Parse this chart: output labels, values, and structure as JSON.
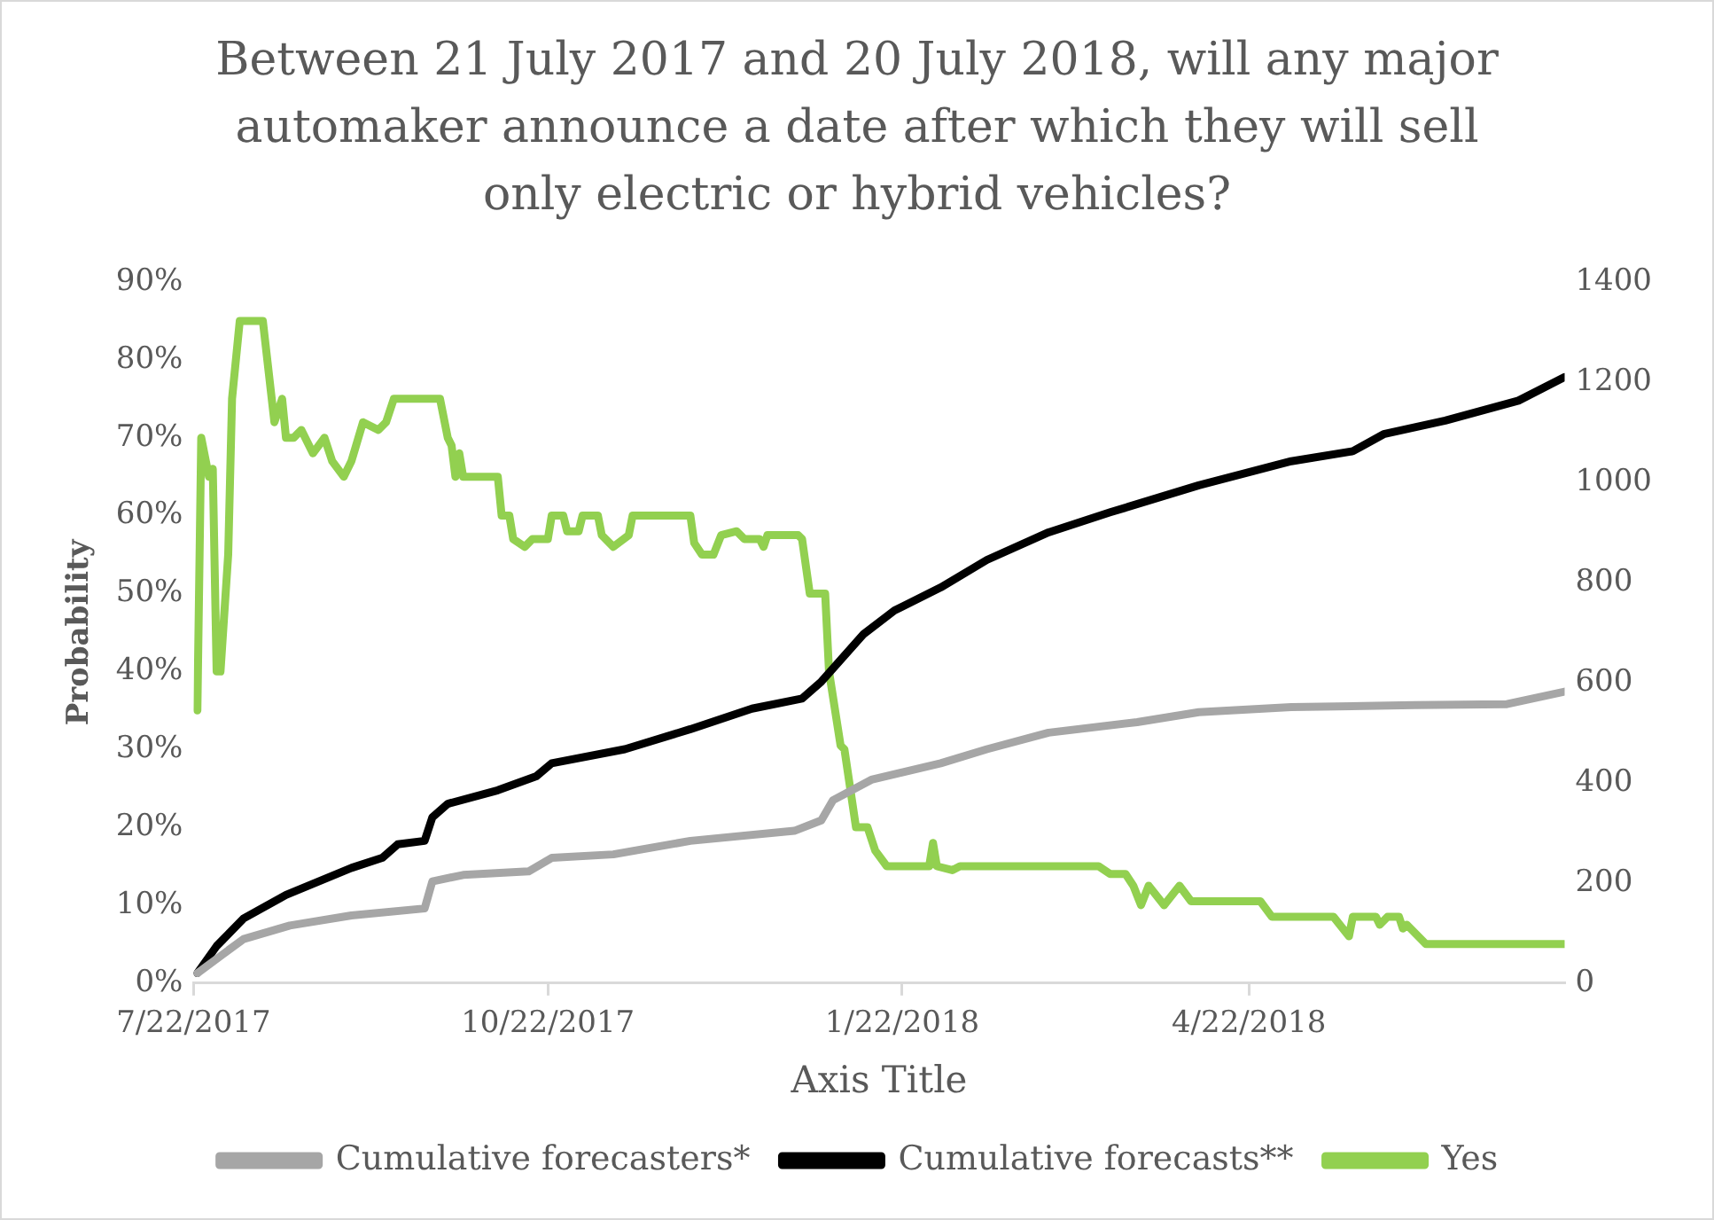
{
  "chart_data": {
    "type": "line",
    "title": "Between 21 July 2017 and 20 July 2018, will any major automaker announce a date after which they will sell only electric or hybrid vehicles?",
    "xlabel": "Axis Title",
    "ylabel": "Probability",
    "xlim": [
      "2017-07-22",
      "2018-07-13"
    ],
    "xticks": [
      {
        "value": "2017-07-22",
        "label": "7/22/2017"
      },
      {
        "value": "2017-10-22",
        "label": "10/22/2017"
      },
      {
        "value": "2018-01-22",
        "label": "1/22/2018"
      },
      {
        "value": "2018-04-22",
        "label": "4/22/2018"
      }
    ],
    "ylim": [
      0,
      90
    ],
    "yticks": [
      {
        "value": 0,
        "label": "0%"
      },
      {
        "value": 10,
        "label": "10%"
      },
      {
        "value": 20,
        "label": "20%"
      },
      {
        "value": 30,
        "label": "30%"
      },
      {
        "value": 40,
        "label": "40%"
      },
      {
        "value": 50,
        "label": "50%"
      },
      {
        "value": 60,
        "label": "60%"
      },
      {
        "value": 70,
        "label": "70%"
      },
      {
        "value": 80,
        "label": "80%"
      },
      {
        "value": 90,
        "label": "90%"
      }
    ],
    "y2lim": [
      0,
      1400
    ],
    "y2ticks": [
      0,
      200,
      400,
      600,
      800,
      1000,
      1200,
      1400
    ],
    "grid": false,
    "legend": "bottom",
    "marker": "none",
    "line_style": "solid",
    "series": [
      {
        "name": "Cumulative forecasters*",
        "color": "#a6a6a6",
        "axis": "y2",
        "x": [
          "2017-07-23",
          "2017-08-04",
          "2017-08-16",
          "2017-09-01",
          "2017-09-20",
          "2017-09-22",
          "2017-09-30",
          "2017-10-17",
          "2017-10-23",
          "2017-11-08",
          "2017-11-28",
          "2017-12-25",
          "2018-01-01",
          "2018-01-04",
          "2018-01-14",
          "2018-02-01",
          "2018-02-13",
          "2018-03-01",
          "2018-03-24",
          "2018-04-09",
          "2018-05-03",
          "2018-06-04",
          "2018-06-28",
          "2018-07-13"
        ],
        "values": [
          20,
          88,
          115,
          135,
          149,
          203,
          216,
          223,
          250,
          257,
          284,
          304,
          325,
          365,
          406,
          439,
          467,
          500,
          521,
          541,
          551,
          555,
          557,
          582
        ]
      },
      {
        "name": "Cumulative forecasts**",
        "color": "#000000",
        "axis": "y2",
        "x": [
          "2017-07-23",
          "2017-07-28",
          "2017-08-04",
          "2017-08-15",
          "2017-09-01",
          "2017-09-09",
          "2017-09-13",
          "2017-09-20",
          "2017-09-22",
          "2017-09-26",
          "2017-10-09",
          "2017-10-19",
          "2017-10-23",
          "2017-11-11",
          "2017-11-28",
          "2017-12-14",
          "2017-12-27",
          "2018-01-01",
          "2018-01-12",
          "2018-01-20",
          "2018-02-01",
          "2018-02-13",
          "2018-03-01",
          "2018-03-17",
          "2018-04-09",
          "2018-05-03",
          "2018-05-19",
          "2018-05-27",
          "2018-06-12",
          "2018-07-01",
          "2018-07-13"
        ],
        "values": [
          20,
          74,
          129,
          176,
          230,
          250,
          277,
          284,
          331,
          358,
          385,
          413,
          439,
          467,
          507,
          548,
          568,
          602,
          697,
          744,
          790,
          845,
          900,
          940,
          994,
          1042,
          1062,
          1096,
          1123,
          1163,
          1210
        ]
      },
      {
        "name": "Yes",
        "color": "#92d050",
        "axis": "y",
        "x": [
          "2017-07-23",
          "2017-07-24",
          "2017-07-26",
          "2017-07-27",
          "2017-07-28",
          "2017-07-29",
          "2017-07-31",
          "2017-08-01",
          "2017-08-03",
          "2017-08-09",
          "2017-08-12",
          "2017-08-14",
          "2017-08-15",
          "2017-08-17",
          "2017-08-19",
          "2017-08-22",
          "2017-08-25",
          "2017-08-27",
          "2017-08-30",
          "2017-09-01",
          "2017-09-04",
          "2017-09-08",
          "2017-09-10",
          "2017-09-12",
          "2017-09-24",
          "2017-09-26",
          "2017-09-27",
          "2017-09-28",
          "2017-09-29",
          "2017-09-30",
          "2017-10-09",
          "2017-10-10",
          "2017-10-12",
          "2017-10-13",
          "2017-10-16",
          "2017-10-18",
          "2017-10-22",
          "2017-10-23",
          "2017-10-26",
          "2017-10-27",
          "2017-10-30",
          "2017-10-31",
          "2017-11-04",
          "2017-11-05",
          "2017-11-08",
          "2017-11-12",
          "2017-11-13",
          "2017-11-28",
          "2017-11-29",
          "2017-12-01",
          "2017-12-04",
          "2017-12-06",
          "2017-12-10",
          "2017-12-12",
          "2017-12-16",
          "2017-12-17",
          "2017-12-18",
          "2017-12-26",
          "2017-12-27",
          "2017-12-29",
          "2018-01-02",
          "2018-01-03",
          "2018-01-06",
          "2018-01-07",
          "2018-01-10",
          "2018-01-13",
          "2018-01-15",
          "2018-01-18",
          "2018-01-29",
          "2018-01-30",
          "2018-01-31",
          "2018-02-04",
          "2018-02-06",
          "2018-03-14",
          "2018-03-17",
          "2018-03-21",
          "2018-03-23",
          "2018-03-25",
          "2018-03-27",
          "2018-03-31",
          "2018-04-04",
          "2018-04-07",
          "2018-04-25",
          "2018-04-28",
          "2018-05-02",
          "2018-05-14",
          "2018-05-18",
          "2018-05-19",
          "2018-05-25",
          "2018-05-26",
          "2018-05-28",
          "2018-05-31",
          "2018-06-01",
          "2018-06-02",
          "2018-06-07",
          "2018-07-13"
        ],
        "values": [
          35,
          70,
          65,
          66,
          40,
          40,
          55,
          75,
          85,
          85,
          72,
          75,
          70,
          70,
          71,
          68,
          70,
          67,
          65,
          67,
          72,
          71,
          72,
          75,
          75,
          70,
          69,
          65,
          68,
          65,
          65,
          60,
          60,
          57,
          56,
          57,
          57,
          60,
          60,
          58,
          58,
          60,
          60,
          57.5,
          56,
          57.5,
          60,
          60,
          56.5,
          55,
          55,
          57.5,
          58,
          57,
          57,
          56,
          57.5,
          57.5,
          57,
          50,
          50,
          40,
          30.5,
          30,
          20,
          20,
          17,
          15,
          15,
          18,
          15,
          14.5,
          15,
          15,
          14,
          14,
          12.5,
          10,
          12.5,
          10,
          12.5,
          10.5,
          10.5,
          8.5,
          8.5,
          8.5,
          6,
          8.5,
          8.5,
          7.5,
          8.5,
          8.5,
          7,
          7.5,
          5,
          5
        ]
      }
    ]
  }
}
